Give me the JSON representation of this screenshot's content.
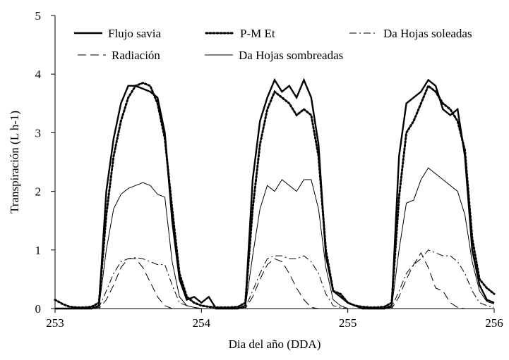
{
  "chart_data": {
    "type": "line",
    "x_label": "Dia del año (DDA)",
    "y_label": "Transpiración (L h-1)",
    "xlim": [
      253,
      256
    ],
    "xticks": [
      253,
      254,
      255,
      256
    ],
    "ylim": [
      0,
      5
    ],
    "yticks": [
      0,
      1,
      2,
      3,
      4,
      5
    ],
    "x": [
      253,
      253.05,
      253.1,
      253.15,
      253.2,
      253.25,
      253.3,
      253.35,
      253.4,
      253.45,
      253.5,
      253.55,
      253.6,
      253.65,
      253.7,
      253.75,
      253.8,
      253.85,
      253.9,
      253.95,
      254,
      254.05,
      254.1,
      254.15,
      254.2,
      254.25,
      254.3,
      254.35,
      254.4,
      254.45,
      254.5,
      254.55,
      254.6,
      254.65,
      254.7,
      254.75,
      254.8,
      254.85,
      254.9,
      254.95,
      255,
      255.05,
      255.1,
      255.15,
      255.2,
      255.25,
      255.3,
      255.35,
      255.4,
      255.45,
      255.5,
      255.55,
      255.6,
      255.65,
      255.7,
      255.75,
      255.8,
      255.85,
      255.9,
      255.95,
      256
    ],
    "series": [
      {
        "name": "Flujo savia",
        "color": "#000000",
        "dash": "solid",
        "width": 2.4,
        "values": [
          0,
          0,
          0,
          0,
          0,
          0,
          0.05,
          2.0,
          2.9,
          3.5,
          3.8,
          3.8,
          3.75,
          3.7,
          3.6,
          3.0,
          1.5,
          0.5,
          0.15,
          0.2,
          0.1,
          0.2,
          0,
          0,
          0,
          0,
          0.05,
          2.2,
          3.2,
          3.6,
          3.9,
          3.7,
          3.8,
          3.6,
          3.9,
          3.6,
          2.8,
          0.9,
          0.3,
          0.2,
          0.1,
          0.05,
          0,
          0,
          0,
          0,
          0.05,
          2.6,
          3.5,
          3.6,
          3.7,
          3.9,
          3.8,
          3.4,
          3.3,
          3.4,
          2.6,
          1.0,
          0.4,
          0.15,
          0.1
        ]
      },
      {
        "name": "P-M Et",
        "color": "#000000",
        "dash": "dot",
        "width": 3,
        "values": [
          0.15,
          0.08,
          0.03,
          0.02,
          0.02,
          0.03,
          0.1,
          1.6,
          2.6,
          3.2,
          3.6,
          3.8,
          3.85,
          3.8,
          3.5,
          2.9,
          1.7,
          0.6,
          0.2,
          0.1,
          0.05,
          0.03,
          0.02,
          0.02,
          0.02,
          0.03,
          0.1,
          1.7,
          2.8,
          3.4,
          3.7,
          3.6,
          3.5,
          3.3,
          3.4,
          3.3,
          2.6,
          1.0,
          0.3,
          0.25,
          0.1,
          0.05,
          0.03,
          0.02,
          0.02,
          0.03,
          0.1,
          1.9,
          3.0,
          3.2,
          3.5,
          3.8,
          3.7,
          3.5,
          3.4,
          3.2,
          2.7,
          1.2,
          0.5,
          0.35,
          0.25
        ]
      },
      {
        "name": "Da Hojas soleadas",
        "color": "#000000",
        "dash": "dashdot",
        "width": 1,
        "values": [
          0,
          0,
          0,
          0,
          0,
          0,
          0.02,
          0.3,
          0.6,
          0.8,
          0.85,
          0.87,
          0.85,
          0.8,
          0.75,
          0.75,
          0.4,
          0.1,
          0.05,
          0.02,
          0,
          0,
          0,
          0,
          0,
          0,
          0.02,
          0.3,
          0.6,
          0.85,
          0.9,
          0.9,
          0.85,
          0.85,
          0.9,
          0.8,
          0.6,
          0.25,
          0.05,
          0.02,
          0,
          0,
          0,
          0,
          0,
          0,
          0.02,
          0.3,
          0.6,
          0.75,
          0.85,
          1.0,
          0.95,
          0.9,
          0.9,
          0.8,
          0.6,
          0.3,
          0.1,
          0.05,
          0.02
        ]
      },
      {
        "name": "Radiación",
        "color": "#000000",
        "dash": "dash",
        "width": 1,
        "values": [
          0,
          0,
          0,
          0,
          0,
          0,
          0,
          0.15,
          0.4,
          0.7,
          0.85,
          0.85,
          0.7,
          0.45,
          0.2,
          0.05,
          0,
          0,
          0,
          0,
          0,
          0,
          0,
          0,
          0,
          0,
          0,
          0.2,
          0.5,
          0.75,
          0.85,
          0.8,
          0.6,
          0.35,
          0.15,
          0.02,
          0,
          0,
          0,
          0,
          0,
          0,
          0,
          0,
          0,
          0,
          0,
          0.2,
          0.5,
          0.75,
          0.95,
          0.7,
          0.35,
          0.3,
          0.1,
          0.02,
          0,
          0,
          0,
          0,
          0
        ]
      },
      {
        "name": "Da Hojas sombreadas",
        "color": "#000000",
        "dash": "solid",
        "width": 1,
        "values": [
          0,
          0,
          0,
          0,
          0,
          0,
          0.02,
          1.0,
          1.7,
          1.95,
          2.05,
          2.1,
          2.15,
          2.1,
          1.95,
          1.9,
          0.8,
          0.2,
          0.05,
          0.02,
          0,
          0,
          0,
          0,
          0,
          0,
          0.02,
          0.9,
          1.7,
          2.1,
          2.0,
          2.2,
          2.1,
          2.0,
          2.2,
          2.2,
          1.7,
          0.7,
          0.15,
          0.05,
          0,
          0,
          0,
          0,
          0,
          0,
          0.02,
          1.0,
          1.8,
          1.85,
          2.2,
          2.4,
          2.3,
          2.2,
          2.1,
          2.0,
          1.6,
          0.8,
          0.3,
          0.12,
          0.08
        ]
      }
    ]
  }
}
